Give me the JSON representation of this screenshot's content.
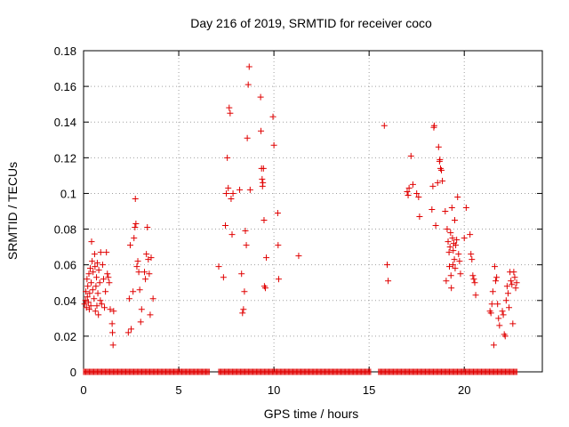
{
  "chart_data": {
    "type": "scatter",
    "title": "Day 216 of 2019, SRMTID for receiver coco",
    "xlabel": "GPS time / hours",
    "ylabel": "SRMTID / TECUs",
    "xlim": [
      0,
      24.1
    ],
    "ylim": [
      0,
      0.18
    ],
    "xticks": [
      0,
      5,
      10,
      15,
      20
    ],
    "xtick_labels": [
      "0",
      "5",
      "10",
      "15",
      "20"
    ],
    "yticks": [
      0,
      0.02,
      0.04,
      0.06,
      0.08,
      0.1,
      0.12,
      0.14,
      0.16,
      0.18
    ],
    "ytick_labels": [
      "0",
      "0.02",
      "0.04",
      "0.06",
      "0.08",
      "0.1",
      "0.12",
      "0.14",
      "0.16",
      "0.18"
    ],
    "grid": true,
    "legend": "none",
    "marker": "plus",
    "color": "#e00000",
    "zero_segments": [
      [
        0.0,
        6.6
      ],
      [
        7.1,
        15.1
      ],
      [
        15.5,
        22.8
      ]
    ],
    "series": [
      {
        "name": "SRMTID",
        "points": [
          [
            0.05,
            0.038
          ],
          [
            0.1,
            0.04
          ],
          [
            0.12,
            0.045
          ],
          [
            0.15,
            0.036
          ],
          [
            0.18,
            0.052
          ],
          [
            0.2,
            0.042
          ],
          [
            0.22,
            0.048
          ],
          [
            0.25,
            0.039
          ],
          [
            0.28,
            0.055
          ],
          [
            0.3,
            0.035
          ],
          [
            0.32,
            0.044
          ],
          [
            0.35,
            0.058
          ],
          [
            0.38,
            0.037
          ],
          [
            0.4,
            0.05
          ],
          [
            0.42,
            0.073
          ],
          [
            0.45,
            0.062
          ],
          [
            0.48,
            0.046
          ],
          [
            0.5,
            0.056
          ],
          [
            0.55,
            0.041
          ],
          [
            0.58,
            0.066
          ],
          [
            0.6,
            0.059
          ],
          [
            0.62,
            0.034
          ],
          [
            0.65,
            0.048
          ],
          [
            0.68,
            0.053
          ],
          [
            0.7,
            0.037
          ],
          [
            0.72,
            0.061
          ],
          [
            0.75,
            0.044
          ],
          [
            0.78,
            0.032
          ],
          [
            0.8,
            0.057
          ],
          [
            0.85,
            0.05
          ],
          [
            0.88,
            0.04
          ],
          [
            0.9,
            0.067
          ],
          [
            0.95,
            0.038
          ],
          [
            1.0,
            0.06
          ],
          [
            1.05,
            0.052
          ],
          [
            1.1,
            0.036
          ],
          [
            1.15,
            0.045
          ],
          [
            1.2,
            0.067
          ],
          [
            1.25,
            0.055
          ],
          [
            1.3,
            0.053
          ],
          [
            1.35,
            0.05
          ],
          [
            1.4,
            0.035
          ],
          [
            1.5,
            0.027
          ],
          [
            1.52,
            0.022
          ],
          [
            1.55,
            0.015
          ],
          [
            1.58,
            0.034
          ],
          [
            2.35,
            0.022
          ],
          [
            2.4,
            0.041
          ],
          [
            2.45,
            0.071
          ],
          [
            2.5,
            0.024
          ],
          [
            2.6,
            0.045
          ],
          [
            2.65,
            0.075
          ],
          [
            2.7,
            0.081
          ],
          [
            2.72,
            0.097
          ],
          [
            2.75,
            0.083
          ],
          [
            2.8,
            0.059
          ],
          [
            2.85,
            0.062
          ],
          [
            2.9,
            0.056
          ],
          [
            2.95,
            0.046
          ],
          [
            3.0,
            0.028
          ],
          [
            3.05,
            0.035
          ],
          [
            3.2,
            0.056
          ],
          [
            3.25,
            0.052
          ],
          [
            3.3,
            0.066
          ],
          [
            3.35,
            0.081
          ],
          [
            3.4,
            0.063
          ],
          [
            3.45,
            0.055
          ],
          [
            3.5,
            0.032
          ],
          [
            3.55,
            0.064
          ],
          [
            3.65,
            0.041
          ],
          [
            7.1,
            0.059
          ],
          [
            7.35,
            0.053
          ],
          [
            7.45,
            0.082
          ],
          [
            7.5,
            0.1
          ],
          [
            7.55,
            0.12
          ],
          [
            7.6,
            0.103
          ],
          [
            7.65,
            0.148
          ],
          [
            7.7,
            0.145
          ],
          [
            7.75,
            0.097
          ],
          [
            7.8,
            0.077
          ],
          [
            7.85,
            0.1
          ],
          [
            8.2,
            0.102
          ],
          [
            8.3,
            0.055
          ],
          [
            8.35,
            0.033
          ],
          [
            8.4,
            0.035
          ],
          [
            8.45,
            0.045
          ],
          [
            8.5,
            0.079
          ],
          [
            8.55,
            0.071
          ],
          [
            8.6,
            0.131
          ],
          [
            8.65,
            0.161
          ],
          [
            8.7,
            0.171
          ],
          [
            8.75,
            0.102
          ],
          [
            9.3,
            0.154
          ],
          [
            9.32,
            0.135
          ],
          [
            9.35,
            0.114
          ],
          [
            9.38,
            0.108
          ],
          [
            9.4,
            0.104
          ],
          [
            9.42,
            0.106
          ],
          [
            9.45,
            0.114
          ],
          [
            9.48,
            0.085
          ],
          [
            9.5,
            0.048
          ],
          [
            9.55,
            0.047
          ],
          [
            9.6,
            0.064
          ],
          [
            9.95,
            0.143
          ],
          [
            10.0,
            0.127
          ],
          [
            10.2,
            0.089
          ],
          [
            10.22,
            0.071
          ],
          [
            10.25,
            0.052
          ],
          [
            11.3,
            0.065
          ],
          [
            15.8,
            0.138
          ],
          [
            15.95,
            0.06
          ],
          [
            16.0,
            0.051
          ],
          [
            17.0,
            0.101
          ],
          [
            17.05,
            0.099
          ],
          [
            17.1,
            0.103
          ],
          [
            17.2,
            0.121
          ],
          [
            17.3,
            0.105
          ],
          [
            17.5,
            0.1
          ],
          [
            17.6,
            0.098
          ],
          [
            17.65,
            0.087
          ],
          [
            18.3,
            0.091
          ],
          [
            18.35,
            0.104
          ],
          [
            18.4,
            0.137
          ],
          [
            18.42,
            0.138
          ],
          [
            18.5,
            0.082
          ],
          [
            18.6,
            0.106
          ],
          [
            18.65,
            0.126
          ],
          [
            18.7,
            0.118
          ],
          [
            18.72,
            0.119
          ],
          [
            18.75,
            0.114
          ],
          [
            18.8,
            0.113
          ],
          [
            18.85,
            0.107
          ],
          [
            19.0,
            0.09
          ],
          [
            19.05,
            0.051
          ],
          [
            19.1,
            0.08
          ],
          [
            19.15,
            0.073
          ],
          [
            19.2,
            0.067
          ],
          [
            19.22,
            0.059
          ],
          [
            19.25,
            0.07
          ],
          [
            19.28,
            0.078
          ],
          [
            19.3,
            0.054
          ],
          [
            19.32,
            0.047
          ],
          [
            19.35,
            0.092
          ],
          [
            19.38,
            0.075
          ],
          [
            19.4,
            0.06
          ],
          [
            19.42,
            0.068
          ],
          [
            19.45,
            0.072
          ],
          [
            19.48,
            0.063
          ],
          [
            19.5,
            0.085
          ],
          [
            19.52,
            0.058
          ],
          [
            19.55,
            0.071
          ],
          [
            19.6,
            0.074
          ],
          [
            19.65,
            0.098
          ],
          [
            19.7,
            0.066
          ],
          [
            19.75,
            0.062
          ],
          [
            19.8,
            0.055
          ],
          [
            20.1,
            0.092
          ],
          [
            20.0,
            0.075
          ],
          [
            20.3,
            0.077
          ],
          [
            20.35,
            0.066
          ],
          [
            20.4,
            0.063
          ],
          [
            20.45,
            0.054
          ],
          [
            20.5,
            0.052
          ],
          [
            20.55,
            0.05
          ],
          [
            20.6,
            0.043
          ],
          [
            21.35,
            0.034
          ],
          [
            21.4,
            0.033
          ],
          [
            21.45,
            0.038
          ],
          [
            21.5,
            0.045
          ],
          [
            21.55,
            0.015
          ],
          [
            21.6,
            0.059
          ],
          [
            21.65,
            0.051
          ],
          [
            21.7,
            0.053
          ],
          [
            21.75,
            0.038
          ],
          [
            21.8,
            0.03
          ],
          [
            21.85,
            0.026
          ],
          [
            22.0,
            0.034
          ],
          [
            22.05,
            0.032
          ],
          [
            22.1,
            0.021
          ],
          [
            22.15,
            0.02
          ],
          [
            22.2,
            0.04
          ],
          [
            22.25,
            0.048
          ],
          [
            22.3,
            0.044
          ],
          [
            22.35,
            0.036
          ],
          [
            22.4,
            0.056
          ],
          [
            22.45,
            0.051
          ],
          [
            22.5,
            0.049
          ],
          [
            22.55,
            0.027
          ],
          [
            22.6,
            0.056
          ],
          [
            22.65,
            0.053
          ],
          [
            22.7,
            0.047
          ],
          [
            22.75,
            0.05
          ]
        ]
      }
    ]
  }
}
